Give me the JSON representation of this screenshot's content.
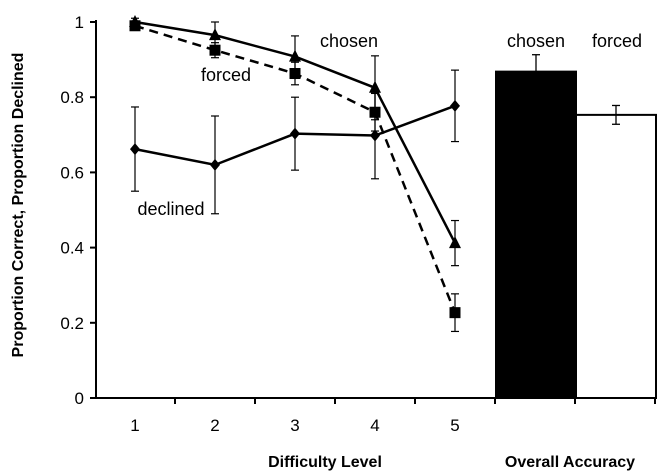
{
  "chart_data": {
    "type": "line",
    "xlabel": "Difficulty Level",
    "ylabel": "Proportion Correct, Proportion Declined",
    "x": [
      1,
      2,
      3,
      4,
      5
    ],
    "ylim": [
      0,
      1
    ],
    "yticks": [
      "0",
      "0.2",
      "0.4",
      "0.6",
      "0.8",
      "1"
    ],
    "xtick_labels": [
      "1",
      "2",
      "3",
      "4",
      "5"
    ],
    "grid": false,
    "series": [
      {
        "name": "chosen",
        "marker": "triangle",
        "line_style": "solid",
        "values": [
          1.0,
          0.965,
          0.908,
          0.825,
          0.412
        ],
        "error": [
          0.01,
          0.035,
          0.055,
          0.085,
          0.06
        ]
      },
      {
        "name": "forced",
        "marker": "square",
        "line_style": "dashed",
        "values": [
          0.99,
          0.925,
          0.863,
          0.76,
          0.227
        ],
        "error": [
          0.008,
          0.02,
          0.03,
          0.05,
          0.05
        ]
      },
      {
        "name": "declined",
        "marker": "diamond",
        "line_style": "solid",
        "values": [
          0.662,
          0.62,
          0.703,
          0.698,
          0.777
        ],
        "error": [
          0.112,
          0.13,
          0.097,
          0.115,
          0.095
        ]
      }
    ],
    "bar_panel": {
      "xlabel": "Overall Accuracy",
      "bars": [
        {
          "name": "chosen",
          "value": 0.868,
          "error": 0.045,
          "fill": "#000000"
        },
        {
          "name": "forced",
          "value": 0.753,
          "error": 0.025,
          "fill": "#ffffff"
        }
      ]
    }
  }
}
